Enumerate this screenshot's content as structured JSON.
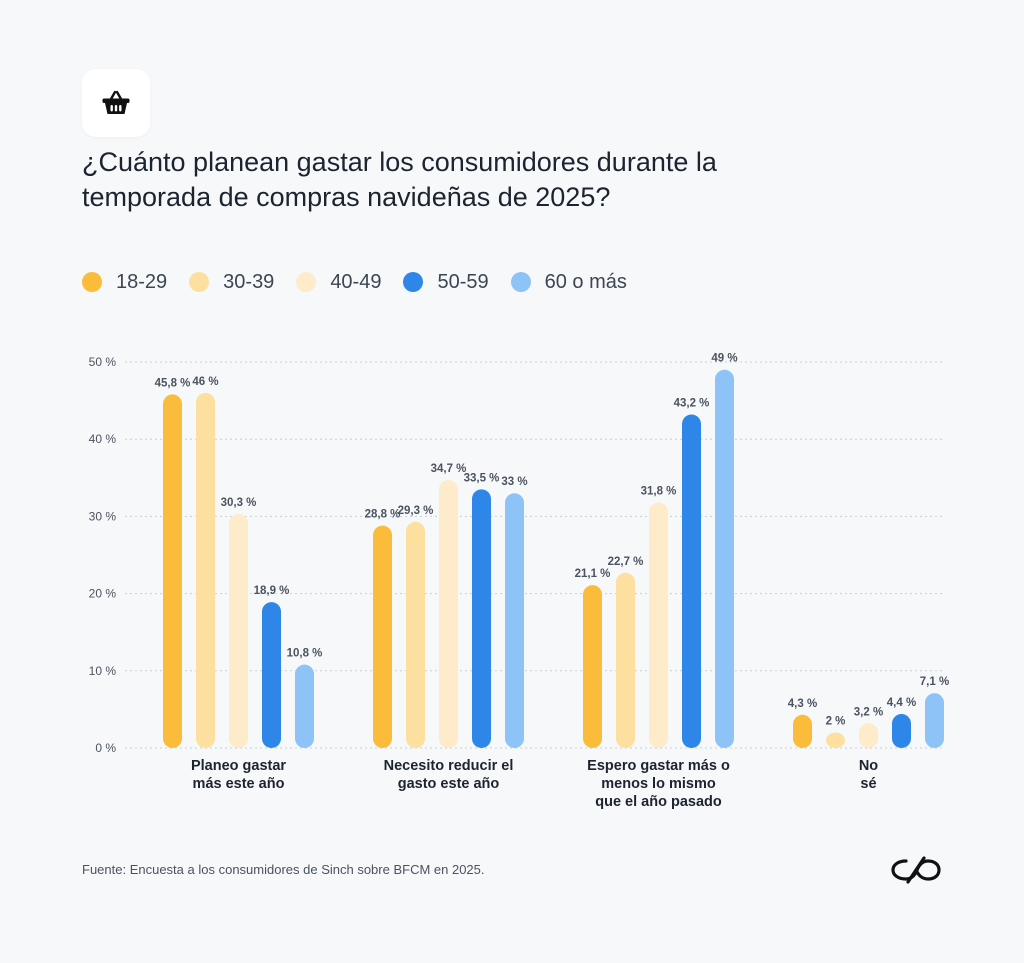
{
  "title": "¿Cuánto planean gastar los consumidores durante la temporada de compras navideñas de 2025?",
  "icons": {
    "header": "shopping-basket-icon",
    "brand": "sinch-logo"
  },
  "legend": [
    {
      "label": "18-29",
      "color": "#fbbc3b"
    },
    {
      "label": "30-39",
      "color": "#fde0a0"
    },
    {
      "label": "40-49",
      "color": "#fdebc9"
    },
    {
      "label": "50-59",
      "color": "#2d86e8"
    },
    {
      "label": "60 o más",
      "color": "#8ec3f7"
    }
  ],
  "source": "Fuente: Encuesta a los consumidores de Sinch sobre BFCM en 2025.",
  "chart_data": {
    "type": "bar",
    "ylim": [
      0,
      50
    ],
    "yticks": [
      0,
      10,
      20,
      30,
      40,
      50
    ],
    "ytick_labels": [
      "0 %",
      "10 %",
      "20 %",
      "30 %",
      "40 %",
      "50 %"
    ],
    "grid": true,
    "legend_position": "top-left",
    "categories": [
      [
        "Planeo gastar",
        "más este año"
      ],
      [
        "Necesito reducir el",
        "gasto este año"
      ],
      [
        "Espero gastar más o",
        "menos lo mismo",
        "que el año pasado"
      ],
      [
        "No",
        "sé"
      ]
    ],
    "series": [
      {
        "name": "18-29",
        "color": "#fbbc3b",
        "values": [
          45.8,
          28.8,
          21.1,
          4.3
        ],
        "labels": [
          "45,8 %",
          "28,8 %",
          "21,1 %",
          "4,3 %"
        ]
      },
      {
        "name": "30-39",
        "color": "#fde0a0",
        "values": [
          46,
          29.3,
          22.7,
          2
        ],
        "labels": [
          "46 %",
          "29,3 %",
          "22,7 %",
          "2 %"
        ]
      },
      {
        "name": "40-49",
        "color": "#fdebc9",
        "values": [
          30.3,
          34.7,
          31.8,
          3.2
        ],
        "labels": [
          "30,3 %",
          "34,7 %",
          "31,8 %",
          "3,2 %"
        ]
      },
      {
        "name": "50-59",
        "color": "#2d86e8",
        "values": [
          18.9,
          33.5,
          43.2,
          4.4
        ],
        "labels": [
          "18,9 %",
          "33,5 %",
          "43,2 %",
          "4,4 %"
        ]
      },
      {
        "name": "60 o más",
        "color": "#8ec3f7",
        "values": [
          10.8,
          33,
          49,
          7.1
        ],
        "labels": [
          "10,8 %",
          "33 %",
          "49 %",
          "7,1 %"
        ]
      }
    ]
  }
}
